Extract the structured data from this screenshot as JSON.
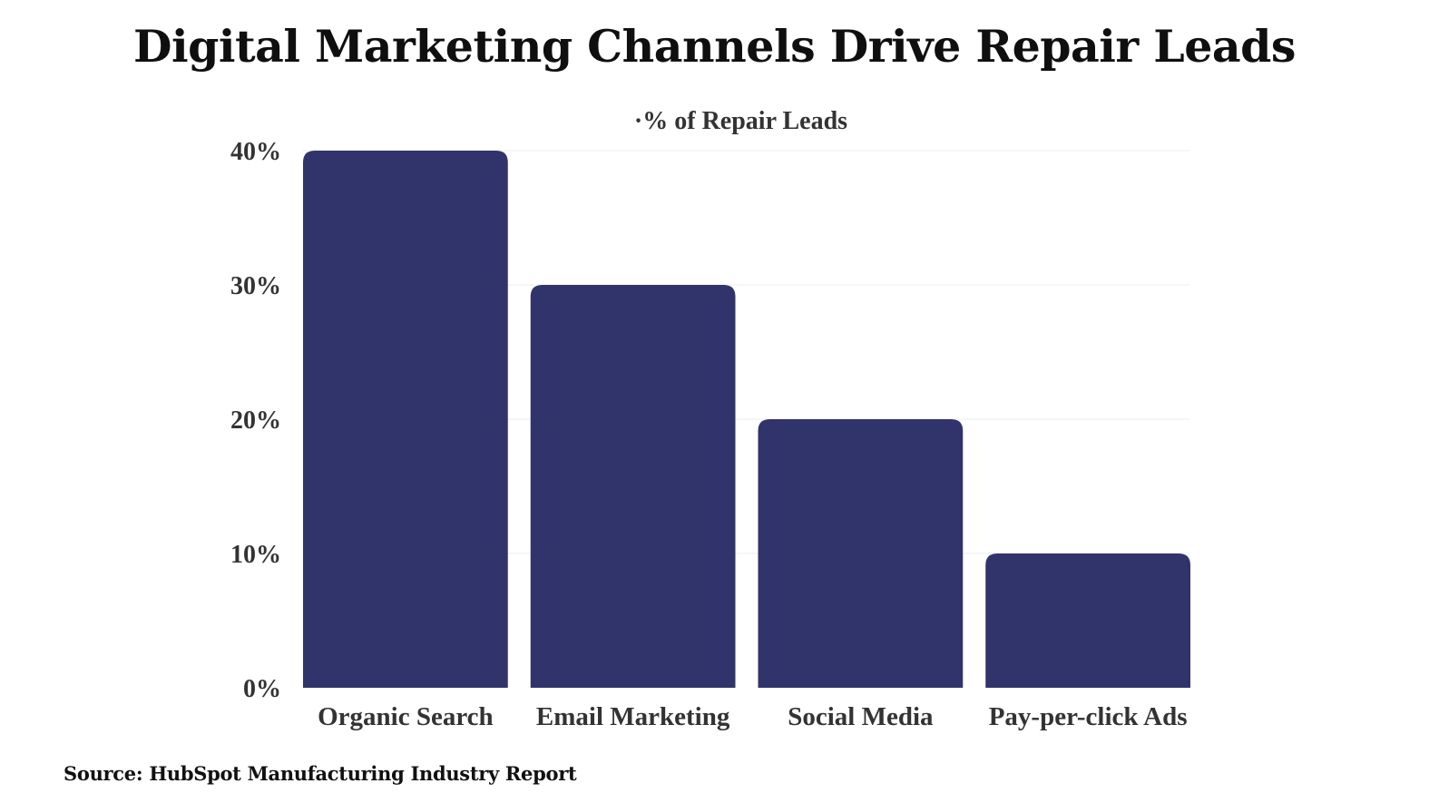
{
  "chart_data": {
    "type": "bar",
    "title": "Digital Marketing Channels Drive Repair Leads",
    "subtitle": "·% of Repair Leads",
    "categories": [
      "Organic Search",
      "Email Marketing",
      "Social Media",
      "Pay-per-click Ads"
    ],
    "values": [
      40,
      30,
      20,
      10
    ],
    "series": [
      {
        "name": "% of Repair Leads",
        "values": [
          40,
          30,
          20,
          10
        ]
      }
    ],
    "xlabel": "",
    "ylabel": "",
    "ylim": [
      0,
      40
    ],
    "yticks": [
      0,
      10,
      20,
      30,
      40
    ],
    "ytick_labels": [
      "0%",
      "10%",
      "20%",
      "30%",
      "40%"
    ],
    "grid": true,
    "bar_color": "#31346a"
  },
  "source": "Source: HubSpot Manufacturing Industry Report"
}
